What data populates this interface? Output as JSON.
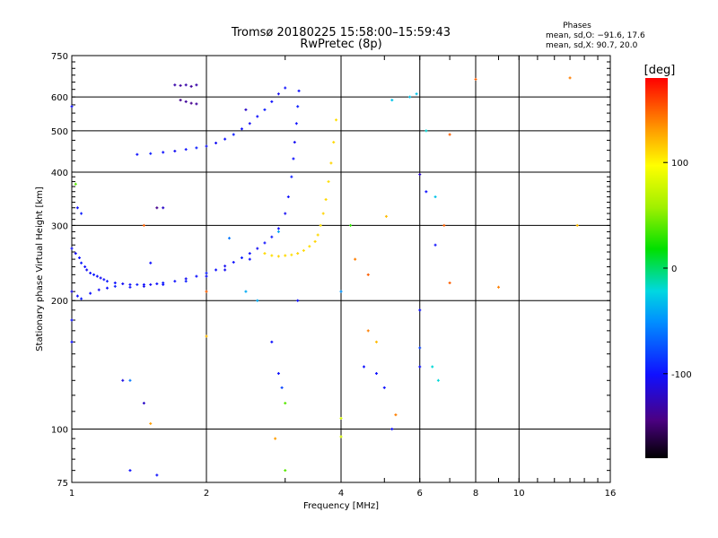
{
  "chart_data": {
    "type": "scatter",
    "title": "Tromsø 20180225 15:58:00–15:59:43",
    "subtitle": "RwPretec (8p)",
    "xlabel": "Frequency [MHz]",
    "ylabel": "Stationary phase Virtual Height [km]",
    "x_scale": "log",
    "y_scale": "log",
    "xlim": [
      1,
      16
    ],
    "ylim": [
      75,
      750
    ],
    "x_ticks": [
      1,
      2,
      4,
      6,
      8,
      10,
      16
    ],
    "y_ticks": [
      75,
      100,
      200,
      300,
      400,
      500,
      600,
      750
    ],
    "grid": true,
    "stats": {
      "heading": "Phases",
      "line_o": "mean, sd,O: −91.6, 17.6",
      "line_x": "mean, sd,X:  90.7, 20.0"
    },
    "colorbar": {
      "label": "[deg]",
      "range": [
        -180,
        180
      ],
      "ticks": [
        -100,
        0,
        100
      ],
      "colormap": "rainbow"
    },
    "series": [
      {
        "values": [
          [
            1.0,
            265,
            -100
          ],
          [
            1.02,
            258,
            -105
          ],
          [
            1.04,
            252,
            -100
          ],
          [
            1.05,
            245,
            -95
          ],
          [
            1.07,
            240,
            -100
          ],
          [
            1.08,
            236,
            -105
          ],
          [
            1.1,
            232,
            -100
          ],
          [
            1.12,
            230,
            -95
          ],
          [
            1.14,
            228,
            -100
          ],
          [
            1.16,
            226,
            -105
          ],
          [
            1.18,
            224,
            -100
          ],
          [
            1.2,
            222,
            -95
          ],
          [
            1.25,
            220,
            -100
          ],
          [
            1.3,
            219,
            -105
          ],
          [
            1.35,
            218,
            -100
          ],
          [
            1.4,
            218,
            -95
          ],
          [
            1.45,
            218,
            -100
          ],
          [
            1.5,
            218,
            -105
          ],
          [
            1.55,
            219,
            -100
          ],
          [
            1.6,
            220,
            -95
          ],
          [
            1.7,
            222,
            -100
          ],
          [
            1.8,
            225,
            -105
          ],
          [
            1.9,
            228,
            -100
          ],
          [
            2.0,
            232,
            -95
          ],
          [
            2.1,
            236,
            -100
          ],
          [
            2.2,
            241,
            -105
          ],
          [
            2.3,
            246,
            -100
          ],
          [
            2.4,
            252,
            -95
          ],
          [
            2.5,
            258,
            -100
          ],
          [
            2.6,
            265,
            -105
          ],
          [
            2.7,
            273,
            -100
          ],
          [
            2.8,
            282,
            -95
          ],
          [
            2.9,
            295,
            -100
          ],
          [
            3.0,
            320,
            -105
          ],
          [
            3.05,
            350,
            -100
          ],
          [
            3.1,
            390,
            -95
          ],
          [
            3.13,
            430,
            -100
          ],
          [
            3.15,
            470,
            -105
          ],
          [
            3.18,
            520,
            -100
          ],
          [
            3.2,
            570,
            -95
          ],
          [
            3.22,
            620,
            -100
          ]
        ]
      },
      {
        "values": [
          [
            2.7,
            258,
            110
          ],
          [
            2.8,
            255,
            108
          ],
          [
            2.9,
            254,
            112
          ],
          [
            3.0,
            255,
            110
          ],
          [
            3.1,
            256,
            108
          ],
          [
            3.2,
            258,
            112
          ],
          [
            3.3,
            262,
            110
          ],
          [
            3.4,
            268,
            108
          ],
          [
            3.5,
            275,
            112
          ],
          [
            3.55,
            285,
            110
          ],
          [
            3.6,
            300,
            108
          ],
          [
            3.65,
            320,
            112
          ],
          [
            3.7,
            345,
            110
          ],
          [
            3.75,
            380,
            108
          ],
          [
            3.8,
            420,
            112
          ],
          [
            3.85,
            470,
            110
          ],
          [
            3.9,
            530,
            108
          ]
        ]
      },
      {
        "values": [
          [
            1.0,
            210,
            -110
          ],
          [
            1.03,
            205,
            -100
          ],
          [
            1.05,
            202,
            -95
          ],
          [
            1.1,
            208,
            -100
          ],
          [
            1.15,
            212,
            -105
          ],
          [
            1.2,
            214,
            -100
          ],
          [
            1.25,
            216,
            -95
          ],
          [
            1.35,
            215,
            -100
          ],
          [
            1.45,
            216,
            -105
          ],
          [
            1.6,
            218,
            -100
          ],
          [
            1.8,
            222,
            -95
          ],
          [
            2.0,
            228,
            -100
          ],
          [
            2.2,
            236,
            -105
          ],
          [
            2.5,
            250,
            -100
          ]
        ]
      },
      {
        "values": [
          [
            1.4,
            440,
            -100
          ],
          [
            1.5,
            442,
            -95
          ],
          [
            1.6,
            445,
            -100
          ],
          [
            1.7,
            448,
            -105
          ],
          [
            1.8,
            452,
            -100
          ],
          [
            1.9,
            456,
            -95
          ],
          [
            2.0,
            460,
            -100
          ],
          [
            2.1,
            468,
            -105
          ],
          [
            2.2,
            478,
            -100
          ],
          [
            2.3,
            490,
            -95
          ],
          [
            2.4,
            505,
            -100
          ],
          [
            2.5,
            520,
            -105
          ],
          [
            2.6,
            540,
            -100
          ],
          [
            2.7,
            560,
            -95
          ],
          [
            2.8,
            585,
            -100
          ],
          [
            2.9,
            610,
            -105
          ],
          [
            3.0,
            630,
            -100
          ]
        ]
      },
      {
        "values": [
          [
            1.7,
            640,
            -130
          ],
          [
            1.75,
            638,
            -135
          ],
          [
            1.8,
            640,
            -130
          ],
          [
            1.85,
            635,
            -135
          ],
          [
            1.9,
            640,
            -130
          ],
          [
            1.75,
            590,
            -140
          ],
          [
            1.8,
            585,
            -135
          ],
          [
            1.85,
            580,
            -140
          ],
          [
            1.9,
            578,
            -135
          ]
        ]
      },
      {
        "values": [
          [
            1.0,
            570,
            -100
          ],
          [
            1.02,
            375,
            40
          ],
          [
            1.03,
            330,
            -100
          ],
          [
            1.05,
            320,
            -95
          ],
          [
            1.0,
            180,
            -100
          ],
          [
            1.0,
            160,
            -100
          ],
          [
            1.3,
            130,
            -110
          ],
          [
            1.35,
            130,
            -60
          ],
          [
            1.45,
            115,
            -120
          ],
          [
            1.5,
            103,
            130
          ],
          [
            1.35,
            80,
            -100
          ],
          [
            1.55,
            78,
            -100
          ],
          [
            1.45,
            300,
            150
          ],
          [
            1.55,
            330,
            -140
          ],
          [
            2.0,
            165,
            120
          ],
          [
            2.0,
            210,
            150
          ],
          [
            2.25,
            280,
            -60
          ],
          [
            2.45,
            560,
            -120
          ],
          [
            2.8,
            160,
            -100
          ],
          [
            2.9,
            135,
            -100
          ],
          [
            2.95,
            125,
            -80
          ],
          [
            3.0,
            115,
            40
          ],
          [
            2.85,
            95,
            130
          ],
          [
            3.0,
            80,
            40
          ],
          [
            2.45,
            210,
            -40
          ],
          [
            2.6,
            200,
            -40
          ],
          [
            2.9,
            290,
            -40
          ],
          [
            3.2,
            200,
            -100
          ],
          [
            4.0,
            210,
            -50
          ],
          [
            4.2,
            300,
            30
          ],
          [
            4.0,
            106,
            80
          ],
          [
            4.0,
            96,
            80
          ],
          [
            4.3,
            250,
            140
          ],
          [
            4.6,
            230,
            150
          ],
          [
            4.6,
            170,
            140
          ],
          [
            4.8,
            160,
            120
          ],
          [
            4.8,
            135,
            -100
          ],
          [
            5.0,
            125,
            -100
          ],
          [
            5.05,
            315,
            120
          ],
          [
            5.2,
            590,
            -30
          ],
          [
            5.7,
            600,
            -30
          ],
          [
            5.9,
            610,
            -30
          ],
          [
            6.0,
            395,
            -120
          ],
          [
            6.2,
            360,
            -100
          ],
          [
            6.2,
            500,
            -20
          ],
          [
            6.5,
            350,
            -30
          ],
          [
            6.8,
            300,
            150
          ],
          [
            6.5,
            270,
            -100
          ],
          [
            7.0,
            220,
            150
          ],
          [
            6.0,
            190,
            -100
          ],
          [
            6.0,
            155,
            -80
          ],
          [
            6.0,
            140,
            -100
          ],
          [
            6.4,
            140,
            -20
          ],
          [
            6.6,
            130,
            -20
          ],
          [
            7.0,
            490,
            150
          ],
          [
            8.0,
            660,
            150
          ],
          [
            9.0,
            215,
            140
          ],
          [
            4.5,
            140,
            -100
          ],
          [
            5.2,
            100,
            -100
          ],
          [
            5.3,
            108,
            140
          ],
          [
            13.0,
            665,
            140
          ],
          [
            13.5,
            300,
            120
          ],
          [
            1.5,
            245,
            -100
          ],
          [
            1.6,
            330,
            -120
          ]
        ]
      }
    ]
  }
}
